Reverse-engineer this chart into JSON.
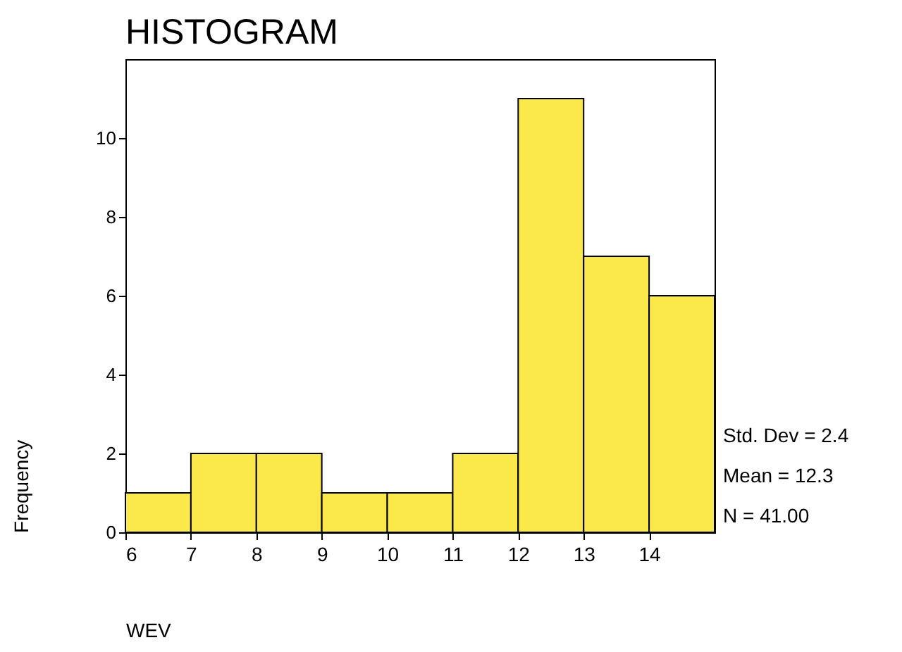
{
  "chart_data": {
    "type": "histogram",
    "title": "HISTOGRAM",
    "xlabel": "WEV",
    "ylabel": "Frequency",
    "bins": [
      6,
      7,
      8,
      9,
      10,
      11,
      12,
      13,
      14,
      15
    ],
    "values": [
      1,
      2,
      2,
      1,
      1,
      2,
      11,
      7,
      6
    ],
    "color": "#fbe84a",
    "xlim": [
      6,
      15
    ],
    "xticks": [
      6,
      7,
      8,
      9,
      10,
      11,
      12,
      13,
      14
    ],
    "ylim": [
      0,
      12
    ],
    "yticks": [
      0,
      2,
      4,
      6,
      8,
      10
    ],
    "grid": false,
    "annotations": [
      "Std. Dev = 2.4",
      "Mean = 12.3",
      "N = 41.00"
    ]
  }
}
